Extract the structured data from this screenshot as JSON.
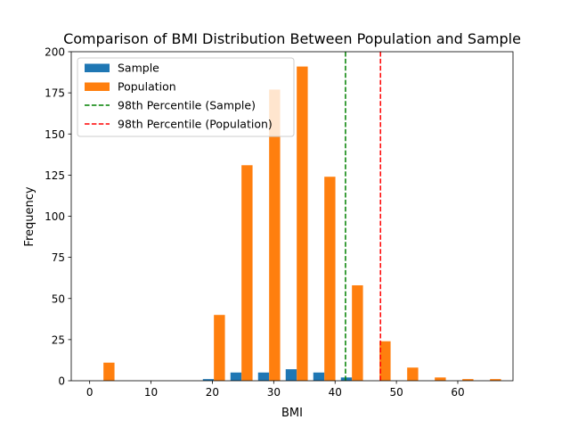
{
  "chart_data": {
    "type": "bar",
    "title": "Comparison of BMI Distribution Between Population and Sample",
    "xlabel": "BMI",
    "ylabel": "Frequency",
    "xlim": [
      -3,
      69
    ],
    "ylim": [
      0,
      200
    ],
    "xticks": [
      0,
      10,
      20,
      30,
      40,
      50,
      60
    ],
    "yticks": [
      0,
      25,
      50,
      75,
      100,
      125,
      150,
      175,
      200
    ],
    "bin_width": 4.5,
    "bin_starts": [
      0,
      4.5,
      9,
      13.5,
      18,
      22.5,
      27,
      31.5,
      36,
      40.5,
      45,
      49.5,
      54,
      58.5,
      63
    ],
    "series": [
      {
        "name": "Sample",
        "color": "#1f77b4",
        "values": [
          0,
          0,
          0,
          0,
          1,
          5,
          5,
          7,
          5,
          2,
          0,
          0,
          0,
          0,
          0
        ]
      },
      {
        "name": "Population",
        "color": "#ff7f0e",
        "values": [
          11,
          0,
          0,
          0,
          40,
          131,
          177,
          191,
          124,
          58,
          24,
          8,
          2,
          1,
          1
        ]
      }
    ],
    "reference_lines": [
      {
        "name": "98th Percentile (Sample)",
        "x": 41.7,
        "color": "#008000",
        "style": "dashed"
      },
      {
        "name": "98th Percentile (Population)",
        "x": 47.4,
        "color": "#ff0000",
        "style": "dashed"
      }
    ],
    "legend_position": "top-left",
    "grid": false
  }
}
